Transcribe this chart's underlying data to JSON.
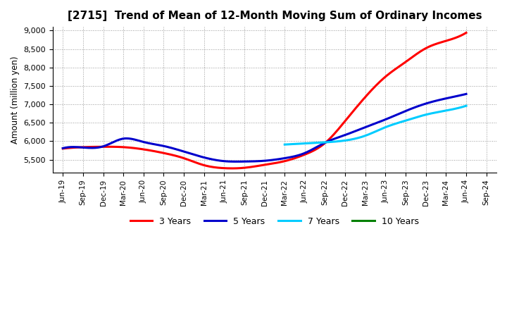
{
  "title": "[2715]  Trend of Mean of 12-Month Moving Sum of Ordinary Incomes",
  "ylabel": "Amount (million yen)",
  "background_color": "#ffffff",
  "grid_color": "#999999",
  "title_fontsize": 11,
  "x_labels": [
    "Jun-19",
    "Sep-19",
    "Dec-19",
    "Mar-20",
    "Jun-20",
    "Sep-20",
    "Dec-20",
    "Mar-21",
    "Jun-21",
    "Sep-21",
    "Dec-21",
    "Mar-22",
    "Jun-22",
    "Sep-22",
    "Dec-22",
    "Mar-23",
    "Jun-23",
    "Sep-23",
    "Dec-23",
    "Mar-24",
    "Jun-24",
    "Sep-24"
  ],
  "ylim": [
    5150,
    9100
  ],
  "yticks": [
    5500,
    6000,
    6500,
    7000,
    7500,
    8000,
    8500,
    9000
  ],
  "series": {
    "3 Years": {
      "color": "#ff0000",
      "data_x": [
        0,
        1,
        2,
        3,
        4,
        5,
        6,
        7,
        8,
        9,
        10,
        11,
        12,
        13,
        14,
        15,
        16,
        17,
        18,
        19,
        20
      ],
      "data_y": [
        5800,
        5840,
        5850,
        5840,
        5780,
        5680,
        5540,
        5350,
        5270,
        5280,
        5360,
        5460,
        5640,
        5950,
        6550,
        7200,
        7750,
        8150,
        8520,
        8720,
        8940
      ]
    },
    "5 Years": {
      "color": "#0000cc",
      "data_x": [
        0,
        1,
        2,
        3,
        4,
        5,
        6,
        7,
        8,
        9,
        10,
        11,
        12,
        13,
        14,
        15,
        16,
        17,
        18,
        19,
        20
      ],
      "data_y": [
        5810,
        5830,
        5860,
        6070,
        5980,
        5870,
        5720,
        5560,
        5460,
        5450,
        5470,
        5540,
        5680,
        5960,
        6170,
        6380,
        6590,
        6820,
        7020,
        7160,
        7280
      ]
    },
    "7 Years": {
      "color": "#00ccff",
      "data_x": [
        11,
        12,
        13,
        14,
        15,
        16,
        17,
        18,
        19,
        20
      ],
      "data_y": [
        5910,
        5940,
        5970,
        6020,
        6150,
        6380,
        6560,
        6720,
        6830,
        6960
      ]
    },
    "10 Years": {
      "color": "#008000",
      "data_x": [],
      "data_y": []
    }
  },
  "legend_order": [
    "3 Years",
    "5 Years",
    "7 Years",
    "10 Years"
  ]
}
